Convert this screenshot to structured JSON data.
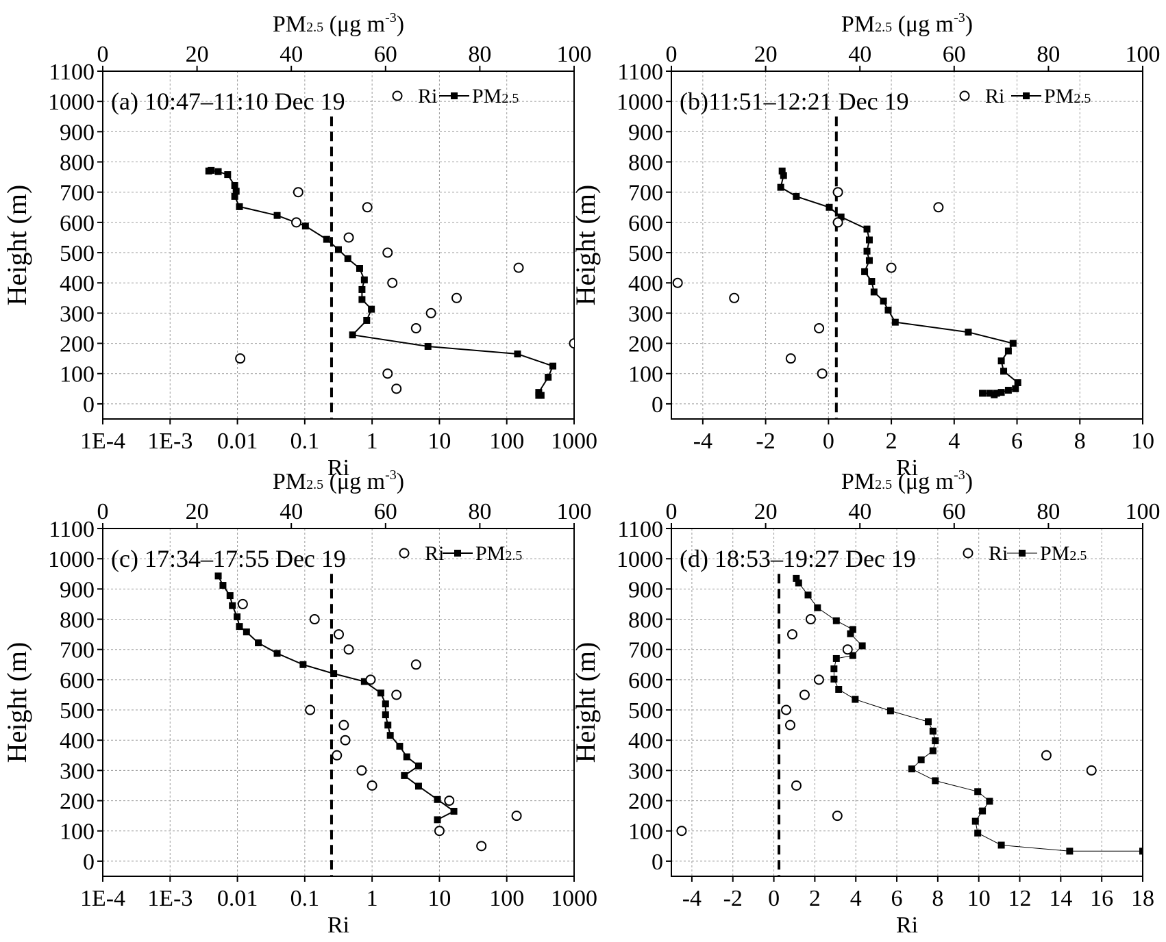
{
  "figure": {
    "ylabel": "Height (m)",
    "xlabel_bottom": "Ri",
    "xlabel_top_main": "PM",
    "xlabel_top_sub": "2.5",
    "xlabel_top_unit": " (μg m",
    "xlabel_top_exp": "-3",
    "xlabel_top_close": ")"
  },
  "legend": {
    "ri": "Ri",
    "pm_main": "PM",
    "pm_sub": "2.5"
  },
  "chart_data": [
    {
      "id": "a",
      "type": "scatter",
      "title": "(a) 10:47–11:10 Dec 19",
      "xlabel": "Ri",
      "ylabel": "Height (m)",
      "top_xlabel": "PM2.5 (μg m-3)",
      "bottom_axis": {
        "scale": "log",
        "range": [
          0.0001,
          1000
        ],
        "ticks": [
          0.0001,
          0.001,
          0.01,
          0.1,
          1,
          10,
          100,
          1000
        ],
        "tick_labels": [
          "1E-4",
          "1E-3",
          "0.01",
          "0.1",
          "1",
          "10",
          "100",
          "1000"
        ]
      },
      "top_axis": {
        "range": [
          0,
          100
        ],
        "ticks": [
          0,
          20,
          40,
          60,
          80,
          100
        ],
        "tick_labels": [
          "0",
          "20",
          "40",
          "60",
          "80",
          "100"
        ]
      },
      "yaxis": {
        "range": [
          -50,
          1100
        ],
        "ticks": [
          0,
          100,
          200,
          300,
          400,
          500,
          600,
          700,
          800,
          900,
          1000,
          1100
        ]
      },
      "ri_reference_line": 0.25,
      "ri_points": [
        [
          0.08,
          700
        ],
        [
          0.85,
          650
        ],
        [
          0.075,
          600
        ],
        [
          0.45,
          550
        ],
        [
          1.7,
          500
        ],
        [
          150,
          450
        ],
        [
          2,
          400
        ],
        [
          18,
          350
        ],
        [
          7.5,
          300
        ],
        [
          4.5,
          250
        ],
        [
          1000,
          200
        ],
        [
          0.011,
          150
        ],
        [
          1.7,
          100
        ],
        [
          2.3,
          50
        ]
      ],
      "pm25_series": [
        [
          22.5,
          770
        ],
        [
          23,
          772
        ],
        [
          24.5,
          768
        ],
        [
          26.5,
          758
        ],
        [
          28,
          722
        ],
        [
          28.3,
          703
        ],
        [
          28,
          686
        ],
        [
          29,
          652
        ],
        [
          37,
          623
        ],
        [
          43,
          588
        ],
        [
          47.5,
          544
        ],
        [
          50,
          510
        ],
        [
          52,
          480
        ],
        [
          54.5,
          448
        ],
        [
          55.5,
          410
        ],
        [
          55,
          378
        ],
        [
          55,
          345
        ],
        [
          57,
          313
        ],
        [
          56,
          276
        ],
        [
          53,
          228
        ],
        [
          69,
          190
        ],
        [
          88,
          165
        ],
        [
          95.5,
          125
        ],
        [
          94.5,
          88
        ],
        [
          92.5,
          38
        ],
        [
          92.5,
          28
        ],
        [
          93,
          28
        ]
      ],
      "pm_line_width": 2
    },
    {
      "id": "b",
      "type": "scatter",
      "title": "(b)11:51–12:21 Dec 19",
      "xlabel": "Ri",
      "ylabel": "Height (m)",
      "top_xlabel": "PM2.5 (μg m-3)",
      "bottom_axis": {
        "scale": "linear",
        "range": [
          -5,
          10
        ],
        "ticks": [
          -4,
          -2,
          0,
          2,
          4,
          6,
          8,
          10
        ],
        "tick_labels": [
          "-4",
          "-2",
          "0",
          "2",
          "4",
          "6",
          "8",
          "10"
        ]
      },
      "top_axis": {
        "range": [
          0,
          100
        ],
        "ticks": [
          0,
          20,
          40,
          60,
          80,
          100
        ],
        "tick_labels": [
          "0",
          "20",
          "40",
          "60",
          "80",
          "100"
        ]
      },
      "yaxis": {
        "range": [
          -50,
          1100
        ],
        "ticks": [
          0,
          100,
          200,
          300,
          400,
          500,
          600,
          700,
          800,
          900,
          1000,
          1100
        ]
      },
      "ri_reference_line": 0.25,
      "ri_points": [
        [
          0.3,
          700
        ],
        [
          3.5,
          650
        ],
        [
          0.3,
          600
        ],
        [
          2,
          450
        ],
        [
          -4.8,
          400
        ],
        [
          -3,
          350
        ],
        [
          -0.3,
          250
        ],
        [
          -1.2,
          150
        ],
        [
          -0.2,
          100
        ]
      ],
      "pm25_series": [
        [
          23.5,
          770
        ],
        [
          23.8,
          755
        ],
        [
          23.2,
          716
        ],
        [
          26.5,
          686
        ],
        [
          33.5,
          650
        ],
        [
          36,
          618
        ],
        [
          41.5,
          578
        ],
        [
          42,
          542
        ],
        [
          41.5,
          505
        ],
        [
          42,
          474
        ],
        [
          41,
          437
        ],
        [
          42.5,
          405
        ],
        [
          43,
          370
        ],
        [
          45,
          340
        ],
        [
          46,
          310
        ],
        [
          47.5,
          270
        ],
        [
          63,
          237
        ],
        [
          72.5,
          200
        ],
        [
          71.5,
          175
        ],
        [
          70,
          142
        ],
        [
          70.5,
          108
        ],
        [
          73.5,
          70
        ],
        [
          73,
          50
        ],
        [
          71.5,
          45
        ],
        [
          70,
          38
        ],
        [
          69,
          35
        ],
        [
          68.5,
          30
        ],
        [
          67.5,
          35
        ],
        [
          66,
          35
        ]
      ],
      "pm_line_width": 2
    },
    {
      "id": "c",
      "type": "scatter",
      "title": "(c) 17:34–17:55 Dec 19",
      "xlabel": "Ri",
      "ylabel": "Height (m)",
      "top_xlabel": "PM2.5 (μg m-3)",
      "bottom_axis": {
        "scale": "log",
        "range": [
          0.0001,
          1000
        ],
        "ticks": [
          0.0001,
          0.001,
          0.01,
          0.1,
          1,
          10,
          100,
          1000
        ],
        "tick_labels": [
          "1E-4",
          "1E-3",
          "0.01",
          "0.1",
          "1",
          "10",
          "100",
          "1000"
        ]
      },
      "top_axis": {
        "range": [
          0,
          100
        ],
        "ticks": [
          0,
          20,
          40,
          60,
          80,
          100
        ],
        "tick_labels": [
          "0",
          "20",
          "40",
          "60",
          "80",
          "100"
        ]
      },
      "yaxis": {
        "range": [
          -50,
          1100
        ],
        "ticks": [
          0,
          100,
          200,
          300,
          400,
          500,
          600,
          700,
          800,
          900,
          1000,
          1100
        ]
      },
      "ri_reference_line": 0.25,
      "ri_points": [
        [
          0.012,
          850
        ],
        [
          0.14,
          800
        ],
        [
          0.32,
          750
        ],
        [
          0.45,
          700
        ],
        [
          4.5,
          650
        ],
        [
          0.95,
          600
        ],
        [
          2.3,
          550
        ],
        [
          0.12,
          500
        ],
        [
          0.38,
          450
        ],
        [
          0.4,
          400
        ],
        [
          0.3,
          350
        ],
        [
          0.7,
          300
        ],
        [
          1,
          250
        ],
        [
          14,
          200
        ],
        [
          140,
          150
        ],
        [
          10,
          100
        ],
        [
          42,
          50
        ]
      ],
      "pm25_series": [
        [
          24.5,
          943
        ],
        [
          25.5,
          912
        ],
        [
          27,
          878
        ],
        [
          27.5,
          845
        ],
        [
          28.5,
          808
        ],
        [
          29,
          776
        ],
        [
          30.5,
          758
        ],
        [
          33,
          722
        ],
        [
          37,
          687
        ],
        [
          42.5,
          650
        ],
        [
          49,
          620
        ],
        [
          55.5,
          594
        ],
        [
          59,
          556
        ],
        [
          60,
          520
        ],
        [
          60,
          484
        ],
        [
          60.5,
          450
        ],
        [
          61,
          416
        ],
        [
          63,
          380
        ],
        [
          64.5,
          345
        ],
        [
          67,
          315
        ],
        [
          64,
          283
        ],
        [
          67,
          248
        ],
        [
          71,
          204
        ],
        [
          74.5,
          165
        ],
        [
          71,
          137
        ]
      ],
      "pm_line_width": 2
    },
    {
      "id": "d",
      "type": "scatter",
      "title": "(d) 18:53–19:27 Dec 19",
      "xlabel": "Ri",
      "ylabel": "Height (m)",
      "top_xlabel": "PM2.5 (μg m-3)",
      "bottom_axis": {
        "scale": "linear",
        "range": [
          -5,
          18
        ],
        "ticks": [
          -4,
          -2,
          0,
          2,
          4,
          6,
          8,
          10,
          12,
          14,
          16,
          18
        ],
        "tick_labels": [
          "-4",
          "-2",
          "0",
          "2",
          "4",
          "6",
          "8",
          "10",
          "12",
          "14",
          "16",
          "18"
        ]
      },
      "top_axis": {
        "range": [
          0,
          100
        ],
        "ticks": [
          0,
          20,
          40,
          60,
          80,
          100
        ],
        "tick_labels": [
          "0",
          "20",
          "40",
          "60",
          "80",
          "100"
        ]
      },
      "yaxis": {
        "range": [
          -50,
          1100
        ],
        "ticks": [
          0,
          100,
          200,
          300,
          400,
          500,
          600,
          700,
          800,
          900,
          1000,
          1100
        ]
      },
      "ri_reference_line": 0.25,
      "ri_points": [
        [
          1.8,
          800
        ],
        [
          0.9,
          750
        ],
        [
          3.6,
          700
        ],
        [
          2.2,
          600
        ],
        [
          1.5,
          550
        ],
        [
          0.6,
          500
        ],
        [
          0.8,
          450
        ],
        [
          13.3,
          350
        ],
        [
          15.5,
          300
        ],
        [
          1.1,
          250
        ],
        [
          3.1,
          150
        ],
        [
          -4.5,
          100
        ]
      ],
      "pm25_series": [
        [
          26.5,
          935
        ],
        [
          27,
          920
        ],
        [
          29,
          880
        ],
        [
          31,
          838
        ],
        [
          35,
          795
        ],
        [
          38.5,
          766
        ],
        [
          38,
          752
        ],
        [
          40.5,
          712
        ],
        [
          38.5,
          680
        ],
        [
          35,
          670
        ],
        [
          34.5,
          636
        ],
        [
          34.5,
          602
        ],
        [
          35.5,
          568
        ],
        [
          39,
          535
        ],
        [
          46.5,
          497
        ],
        [
          54.5,
          461
        ],
        [
          55.5,
          430
        ],
        [
          56,
          398
        ],
        [
          55.5,
          365
        ],
        [
          53,
          335
        ],
        [
          51,
          305
        ],
        [
          56,
          266
        ],
        [
          65,
          230
        ],
        [
          67.5,
          198
        ],
        [
          66,
          166
        ],
        [
          64.5,
          132
        ],
        [
          65,
          93
        ],
        [
          70,
          53
        ],
        [
          84.5,
          33
        ],
        [
          100,
          33
        ]
      ],
      "pm_line_width": 1
    }
  ]
}
